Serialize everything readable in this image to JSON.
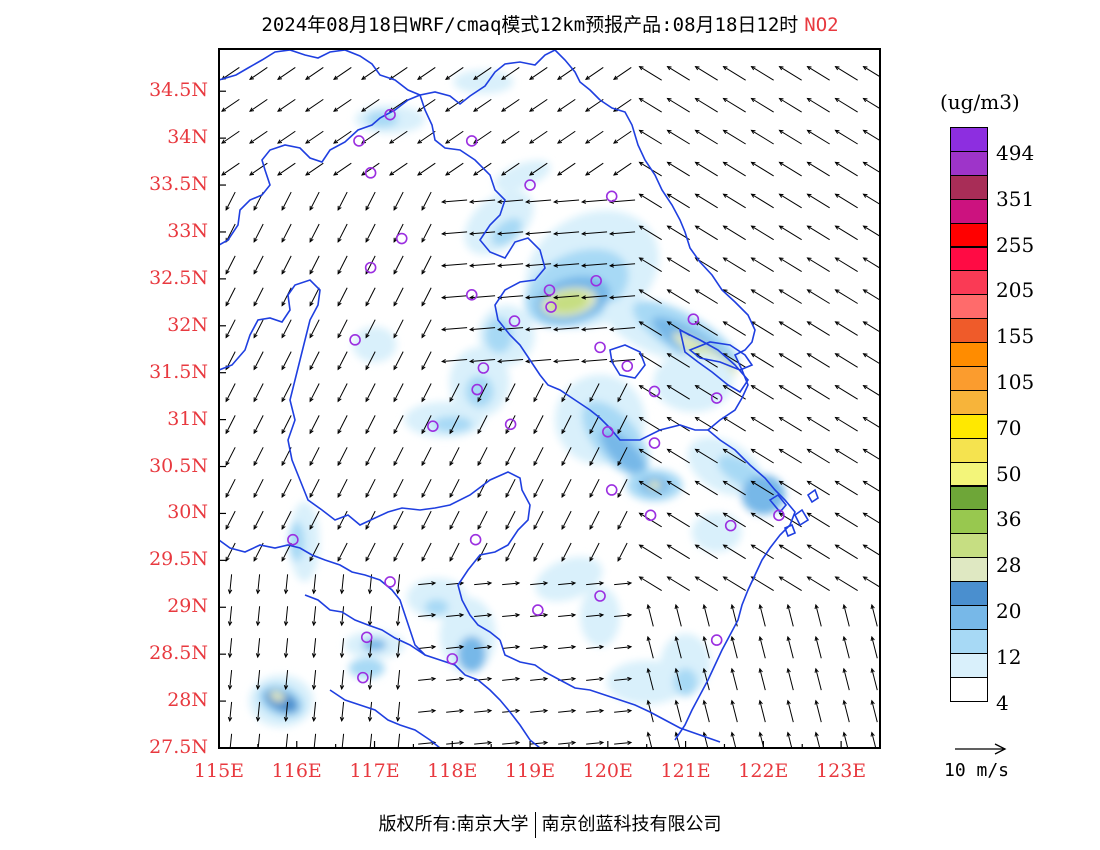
{
  "header": {
    "title": "2024年08月18日WRF/cmaq模式12km预报产品:08月18日12时",
    "pollutant": "NO2"
  },
  "map": {
    "lon_range": [
      115,
      123.5
    ],
    "lat_range": [
      27.5,
      34.95
    ],
    "lat_labels": [
      "34.5N",
      "34N",
      "33.5N",
      "33N",
      "32.5N",
      "32N",
      "31.5N",
      "31N",
      "30.5N",
      "30N",
      "29.5N",
      "29N",
      "28.5N",
      "28N",
      "27.5N"
    ],
    "lon_labels": [
      "115E",
      "116E",
      "117E",
      "118E",
      "119E",
      "120E",
      "121E",
      "122E",
      "123E"
    ],
    "boundary_color": "#1f3fe0",
    "station_color": "#9b2fe0",
    "stations": [
      [
        117.2,
        34.25
      ],
      [
        116.8,
        33.97
      ],
      [
        118.25,
        33.97
      ],
      [
        116.95,
        33.63
      ],
      [
        119.0,
        33.5
      ],
      [
        120.05,
        33.38
      ],
      [
        117.35,
        32.93
      ],
      [
        116.95,
        32.62
      ],
      [
        119.85,
        32.48
      ],
      [
        118.25,
        32.33
      ],
      [
        119.25,
        32.38
      ],
      [
        119.27,
        32.2
      ],
      [
        121.1,
        32.07
      ],
      [
        118.8,
        32.05
      ],
      [
        116.75,
        31.85
      ],
      [
        119.9,
        31.77
      ],
      [
        118.4,
        31.55
      ],
      [
        120.25,
        31.57
      ],
      [
        118.32,
        31.32
      ],
      [
        120.6,
        31.3
      ],
      [
        121.4,
        31.23
      ],
      [
        117.75,
        30.93
      ],
      [
        118.75,
        30.95
      ],
      [
        120.0,
        30.87
      ],
      [
        120.6,
        30.75
      ],
      [
        120.05,
        30.25
      ],
      [
        120.55,
        29.98
      ],
      [
        121.58,
        29.87
      ],
      [
        122.2,
        29.98
      ],
      [
        115.95,
        29.72
      ],
      [
        118.3,
        29.72
      ],
      [
        117.2,
        29.27
      ],
      [
        119.1,
        28.97
      ],
      [
        119.9,
        29.12
      ],
      [
        116.9,
        28.68
      ],
      [
        121.4,
        28.65
      ],
      [
        118.0,
        28.45
      ],
      [
        116.85,
        28.25
      ]
    ],
    "wind_reference": "10 m/s"
  },
  "chart_data": {
    "type": "heatmap",
    "title": "2024年08月18日WRF/cmaq模式12km预报产品:08月18日12时 NO2",
    "xlabel": "",
    "ylabel": "",
    "x_range": [
      115,
      123.5
    ],
    "y_range": [
      27.5,
      34.95
    ],
    "unit": "(ug/m3)",
    "levels": [
      4,
      12,
      20,
      28,
      36,
      50,
      70,
      105,
      155,
      205,
      255,
      351,
      494
    ],
    "colors": [
      "#ffffff",
      "#d9f0fb",
      "#a7d9f5",
      "#77b8e8",
      "#4a8fcf",
      "#dfe8c2",
      "#c6de82",
      "#98c84f",
      "#6ea638",
      "#f3f57a",
      "#f5e34f",
      "#ffe800",
      "#f7b43a",
      "#fb9c2e",
      "#ff8c00",
      "#ef5b2a",
      "#ff6b6b",
      "#fa3a55",
      "#ff0b44",
      "#ff0000",
      "#cc127f",
      "#a82d57",
      "#9e34c9",
      "#8d2ee0"
    ],
    "hotspots": [
      {
        "lon": 119.5,
        "lat": 32.25,
        "level": "28-36"
      },
      {
        "lon": 121.2,
        "lat": 31.75,
        "level": "20-28"
      },
      {
        "lon": 120.6,
        "lat": 30.5,
        "level": "12-20"
      },
      {
        "lon": 115.8,
        "lat": 28.0,
        "level": "20-28"
      }
    ]
  },
  "legend": {
    "unit": "(ug/m3)",
    "labels": [
      "494",
      "351",
      "255",
      "205",
      "155",
      "105",
      "70",
      "50",
      "36",
      "28",
      "20",
      "12",
      "4"
    ]
  },
  "footer": {
    "copyright_left": "版权所有:南京大学",
    "copyright_right": "南京创蓝科技有限公司"
  }
}
